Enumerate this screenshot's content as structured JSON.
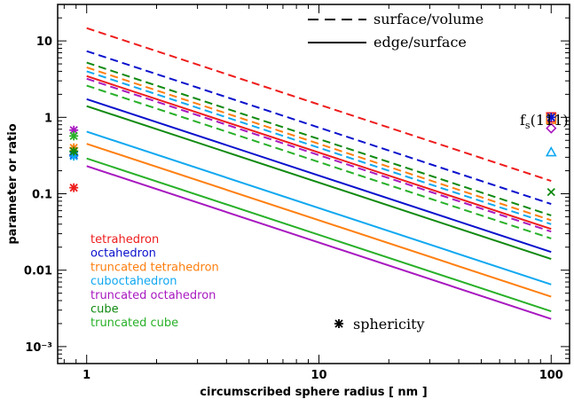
{
  "chart_data": {
    "type": "line",
    "xlabel": "circumscribed sphere radius [ nm ]",
    "ylabel": "parameter or ratio",
    "xscale": "log",
    "yscale": "log",
    "xlim": [
      0.75,
      120
    ],
    "ylim": [
      0.0006,
      30
    ],
    "x_ticks": [
      {
        "value": 1,
        "label": "1"
      },
      {
        "value": 10,
        "label": "10"
      },
      {
        "value": 100,
        "label": "100"
      }
    ],
    "y_ticks": [
      {
        "value": 0.001,
        "label": "10⁻³"
      },
      {
        "value": 0.01,
        "label": "0.01"
      },
      {
        "value": 0.1,
        "label": "0.1"
      },
      {
        "value": 1,
        "label": "1"
      },
      {
        "value": 10,
        "label": "10"
      }
    ],
    "line_legend": [
      {
        "style": "dashed",
        "label": "surface/volume"
      },
      {
        "style": "solid",
        "label": "edge/surface"
      }
    ],
    "shapes": [
      {
        "name": "tetrahedron",
        "color": "#ee1c1c"
      },
      {
        "name": "octahedron",
        "color": "#0a10cc"
      },
      {
        "name": "truncated tetrahedron",
        "color": "#ff7f10"
      },
      {
        "name": "cuboctahedron",
        "color": "#10a8f0"
      },
      {
        "name": "truncated octahedron",
        "color": "#a818c0"
      },
      {
        "name": "cube",
        "color": "#108a10"
      },
      {
        "name": "truncated cube",
        "color": "#28b028"
      }
    ],
    "series": [
      {
        "shape": "tetrahedron",
        "style": "dashed",
        "x": [
          1,
          100
        ],
        "y": [
          14.7,
          0.147
        ]
      },
      {
        "shape": "octahedron",
        "style": "dashed",
        "x": [
          1,
          100
        ],
        "y": [
          7.35,
          0.0735
        ]
      },
      {
        "shape": "truncated tetrahedron",
        "style": "dashed",
        "x": [
          1,
          100
        ],
        "y": [
          4.5,
          0.045
        ]
      },
      {
        "shape": "cuboctahedron",
        "style": "dashed",
        "x": [
          1,
          100
        ],
        "y": [
          4.0,
          0.04
        ]
      },
      {
        "shape": "truncated octahedron",
        "style": "dashed",
        "x": [
          1,
          100
        ],
        "y": [
          3.2,
          0.032
        ]
      },
      {
        "shape": "cube",
        "style": "dashed",
        "x": [
          1,
          100
        ],
        "y": [
          5.2,
          0.052
        ]
      },
      {
        "shape": "truncated cube",
        "style": "dashed",
        "x": [
          1,
          100
        ],
        "y": [
          2.6,
          0.026
        ]
      },
      {
        "shape": "tetrahedron",
        "style": "solid",
        "x": [
          1,
          100
        ],
        "y": [
          3.46,
          0.0346
        ]
      },
      {
        "shape": "octahedron",
        "style": "solid",
        "x": [
          1,
          100
        ],
        "y": [
          1.73,
          0.0173
        ]
      },
      {
        "shape": "truncated tetrahedron",
        "style": "solid",
        "x": [
          1,
          100
        ],
        "y": [
          0.45,
          0.0045
        ]
      },
      {
        "shape": "cuboctahedron",
        "style": "solid",
        "x": [
          1,
          100
        ],
        "y": [
          0.65,
          0.0065
        ]
      },
      {
        "shape": "truncated octahedron",
        "style": "solid",
        "x": [
          1,
          100
        ],
        "y": [
          0.23,
          0.0023
        ]
      },
      {
        "shape": "cube",
        "style": "solid",
        "x": [
          1,
          100
        ],
        "y": [
          1.4,
          0.014
        ]
      },
      {
        "shape": "truncated cube",
        "style": "solid",
        "x": [
          1,
          100
        ],
        "y": [
          0.29,
          0.0029
        ]
      }
    ],
    "sphericity": {
      "label": "sphericity",
      "x": 0.88,
      "points": [
        {
          "shape": "tetrahedron",
          "y": 0.12
        },
        {
          "shape": "octahedron",
          "y": 0.32
        },
        {
          "shape": "truncated tetrahedron",
          "y": 0.4
        },
        {
          "shape": "cuboctahedron",
          "y": 0.31
        },
        {
          "shape": "truncated octahedron",
          "y": 0.68
        },
        {
          "shape": "cube",
          "y": 0.36
        },
        {
          "shape": "truncated cube",
          "y": 0.57
        }
      ]
    },
    "fs111": {
      "label_main": "f",
      "label_sub": "s",
      "label_paren": "(111)",
      "x": 100,
      "points": [
        {
          "shape": "tetrahedron",
          "y": 1.0,
          "marker": "square"
        },
        {
          "shape": "truncated tetrahedron",
          "y": 0.95,
          "marker": "square"
        },
        {
          "shape": "octahedron",
          "y": 1.0,
          "marker": "star"
        },
        {
          "shape": "truncated octahedron",
          "y": 0.72,
          "marker": "diamond"
        },
        {
          "shape": "cuboctahedron",
          "y": 0.35,
          "marker": "triangle"
        },
        {
          "shape": "cube",
          "y": 0.105,
          "marker": "x"
        }
      ]
    }
  }
}
